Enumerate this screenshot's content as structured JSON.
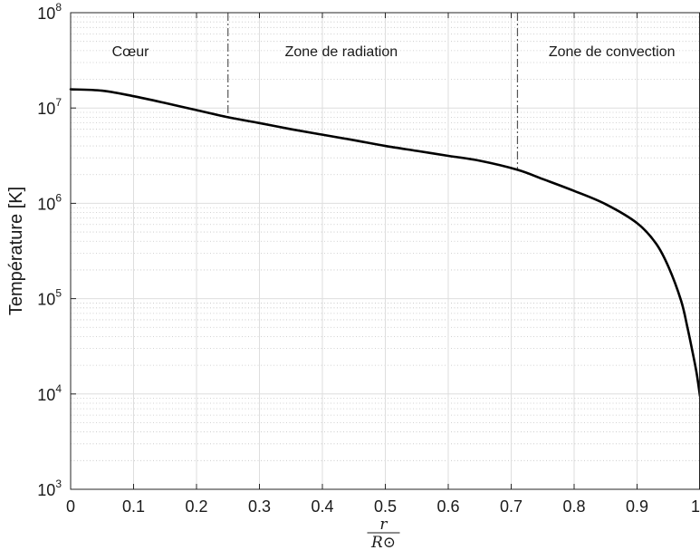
{
  "chart_data": {
    "type": "line",
    "xlabel": {
      "numerator": "r",
      "denominator": "R⊙"
    },
    "ylabel": "Température [K]",
    "xlim": [
      0,
      1
    ],
    "ylim": [
      1000,
      100000000
    ],
    "yscale": "log",
    "grid": true,
    "minor_grid": true,
    "x_ticks": [
      0,
      0.1,
      0.2,
      0.3,
      0.4,
      0.5,
      0.6,
      0.7,
      0.8,
      0.9,
      1
    ],
    "x_tick_labels": [
      "0",
      "0.1",
      "0.2",
      "0.3",
      "0.4",
      "0.5",
      "0.6",
      "0.7",
      "0.8",
      "0.9",
      "1"
    ],
    "y_ticks": [
      {
        "value": 1000,
        "base": "10",
        "exponent": "3"
      },
      {
        "value": 10000,
        "base": "10",
        "exponent": "4"
      },
      {
        "value": 100000,
        "base": "10",
        "exponent": "5"
      },
      {
        "value": 1000000,
        "base": "10",
        "exponent": "6"
      },
      {
        "value": 10000000,
        "base": "10",
        "exponent": "7"
      },
      {
        "value": 100000000,
        "base": "10",
        "exponent": "8"
      }
    ],
    "series": [
      {
        "color": "#000000",
        "x": [
          0,
          0.05,
          0.1,
          0.15,
          0.2,
          0.25,
          0.3,
          0.35,
          0.4,
          0.45,
          0.5,
          0.55,
          0.6,
          0.65,
          0.71,
          0.75,
          0.8,
          0.85,
          0.9,
          0.93,
          0.95,
          0.97,
          0.98,
          0.99,
          0.995,
          1
        ],
        "y": [
          15700000,
          15200000,
          13300000,
          11300000,
          9500000,
          8000000,
          6950000,
          6000000,
          5250000,
          4600000,
          4000000,
          3550000,
          3150000,
          2800000,
          2250000,
          1800000,
          1350000,
          980000,
          620000,
          380000,
          215000,
          95000,
          50000,
          24000,
          16000,
          9500
        ]
      }
    ],
    "vertical_lines": [
      {
        "x": 0.25,
        "style": "dash-dot",
        "color": "#555555"
      },
      {
        "x": 0.71,
        "style": "dash-dot",
        "color": "#555555"
      }
    ],
    "annotations": [
      {
        "text": "Cœur",
        "x": 0.095,
        "y": 40000000
      },
      {
        "text": "Zone de radiation",
        "x": 0.43,
        "y": 40000000
      },
      {
        "text": "Zone de convection",
        "x": 0.86,
        "y": 40000000
      }
    ]
  }
}
